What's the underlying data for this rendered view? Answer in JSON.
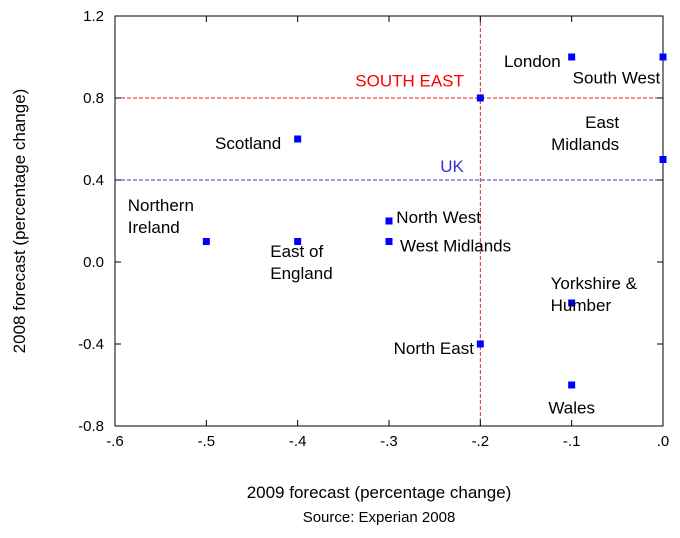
{
  "chart_data": {
    "type": "scatter",
    "xlabel": "2009 forecast (percentage change)",
    "ylabel": "2008 forecast (percentage change)",
    "source": "Source: Experian 2008",
    "xlim": [
      -0.6,
      0.0
    ],
    "ylim": [
      -0.8,
      1.2
    ],
    "x_ticks": [
      -0.6,
      -0.5,
      -0.4,
      -0.3,
      -0.2,
      -0.1,
      0.0
    ],
    "x_tick_labels": [
      "-.6",
      "-.5",
      "-.4",
      "-.3",
      "-.2",
      "-.1",
      ".0"
    ],
    "y_ticks": [
      -0.8,
      -0.4,
      0.0,
      0.4,
      0.8,
      1.2
    ],
    "y_tick_labels": [
      "-0.8",
      "-0.4",
      "0.0",
      "0.4",
      "0.8",
      "1.2"
    ],
    "grid": false,
    "marker_color": "#0000ff",
    "points": [
      {
        "label": [
          "South West"
        ],
        "x": 0.0,
        "y": 1.0,
        "anchor": "end",
        "dx": -0.003,
        "dy": -0.1
      },
      {
        "label": [
          "London"
        ],
        "x": -0.1,
        "y": 1.0,
        "anchor": "end",
        "dx": -0.012,
        "dy": -0.02
      },
      {
        "label": [
          "SOUTH EAST"
        ],
        "x": -0.2,
        "y": 0.8,
        "anchor": "end",
        "dx": -0.018,
        "dy": 0.085,
        "color": "#ff0000"
      },
      {
        "label": [
          "Scotland"
        ],
        "x": -0.4,
        "y": 0.6,
        "anchor": "end",
        "dx": -0.018,
        "dy": -0.02
      },
      {
        "label": [
          "East",
          "Midlands"
        ],
        "x": 0.0,
        "y": 0.5,
        "anchor": "end",
        "dx": -0.048,
        "dy": 0.13
      },
      {
        "label": [
          "North West"
        ],
        "x": -0.3,
        "y": 0.2,
        "anchor": "start",
        "dx": 0.008,
        "dy": 0.02
      },
      {
        "label": [
          "West Midlands"
        ],
        "x": -0.3,
        "y": 0.1,
        "anchor": "start",
        "dx": 0.012,
        "dy": -0.02
      },
      {
        "label": [
          "Northern",
          "Ireland"
        ],
        "x": -0.5,
        "y": 0.1,
        "anchor": "start",
        "dx": -0.086,
        "dy": 0.125
      },
      {
        "label": [
          "East of",
          "England"
        ],
        "x": -0.4,
        "y": 0.1,
        "anchor": "start",
        "dx": -0.03,
        "dy": -0.1
      },
      {
        "label": [
          "Yorkshire &",
          "Humber"
        ],
        "x": -0.1,
        "y": -0.2,
        "anchor": "start",
        "dx": -0.023,
        "dy": 0.045
      },
      {
        "label": [
          "North East"
        ],
        "x": -0.2,
        "y": -0.4,
        "anchor": "end",
        "dx": -0.007,
        "dy": -0.02
      },
      {
        "label": [
          "Wales"
        ],
        "x": -0.1,
        "y": -0.6,
        "anchor": "middle",
        "dx": 0.0,
        "dy": -0.11
      }
    ],
    "reference_lines": [
      {
        "label": "UK",
        "orientation": "horizontal",
        "value": 0.4,
        "color": "#3333cc",
        "label_x": -0.2,
        "label_dx": -0.018,
        "label_dy": 0.04
      },
      {
        "label": "",
        "orientation": "horizontal",
        "value": 0.8,
        "color": "#dd2222"
      },
      {
        "label": "",
        "orientation": "vertical",
        "value": -0.2,
        "color": "#dd2222"
      }
    ]
  }
}
